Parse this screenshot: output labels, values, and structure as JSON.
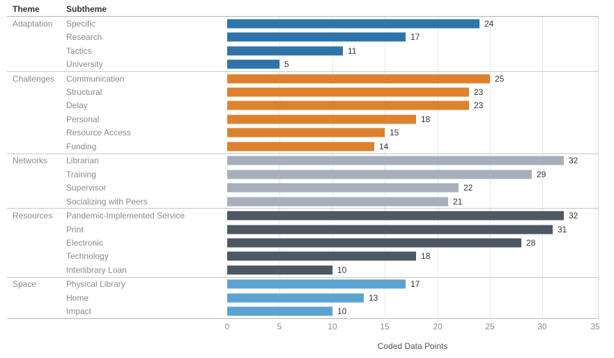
{
  "header": {
    "theme_col": "Theme",
    "subtheme_col": "Subtheme"
  },
  "axis": {
    "title": "Coded Data Points",
    "ticks": [
      0,
      5,
      10,
      15,
      20,
      25,
      30,
      35
    ],
    "max": 35
  },
  "colors": {
    "adaptation": "#2e74a8",
    "challenges": "#dd812e",
    "networks": "#a7afba",
    "resources": "#4e5863",
    "space": "#5ca3d2",
    "gridline": "#e9e9e9",
    "group_divider": "#c9c9c9",
    "axis_line": "#b4b4b4"
  },
  "chart_data": {
    "type": "bar",
    "orientation": "horizontal",
    "title": "",
    "xlabel": "Coded Data Points",
    "ylabel": "Theme / Subtheme",
    "xlim": [
      0,
      35
    ],
    "grid": true,
    "groups": [
      {
        "theme": "Adaptation",
        "color": "#2e74a8",
        "items": [
          {
            "label": "Specific",
            "value": 24
          },
          {
            "label": "Research",
            "value": 17
          },
          {
            "label": "Tactics",
            "value": 11
          },
          {
            "label": "University",
            "value": 5
          }
        ]
      },
      {
        "theme": "Challenges",
        "color": "#dd812e",
        "items": [
          {
            "label": "Communication",
            "value": 25
          },
          {
            "label": "Structural",
            "value": 23
          },
          {
            "label": "Delay",
            "value": 23
          },
          {
            "label": "Personal",
            "value": 18
          },
          {
            "label": "Resource Access",
            "value": 15
          },
          {
            "label": "Funding",
            "value": 14
          }
        ]
      },
      {
        "theme": "Networks",
        "color": "#a7afba",
        "items": [
          {
            "label": "Librarian",
            "value": 32
          },
          {
            "label": "Training",
            "value": 29
          },
          {
            "label": "Supervisor",
            "value": 22
          },
          {
            "label": "Socializing with Peers",
            "value": 21
          }
        ]
      },
      {
        "theme": "Resources",
        "color": "#4e5863",
        "items": [
          {
            "label": "Pandemic-Implemented Service",
            "value": 32
          },
          {
            "label": "Print",
            "value": 31
          },
          {
            "label": "Electronic",
            "value": 28
          },
          {
            "label": "Technology",
            "value": 18
          },
          {
            "label": "Interlibrary Loan",
            "value": 10
          }
        ]
      },
      {
        "theme": "Space",
        "color": "#5ca3d2",
        "items": [
          {
            "label": "Physical Library",
            "value": 17
          },
          {
            "label": "Home",
            "value": 13
          },
          {
            "label": "Impact",
            "value": 10
          }
        ]
      }
    ]
  }
}
